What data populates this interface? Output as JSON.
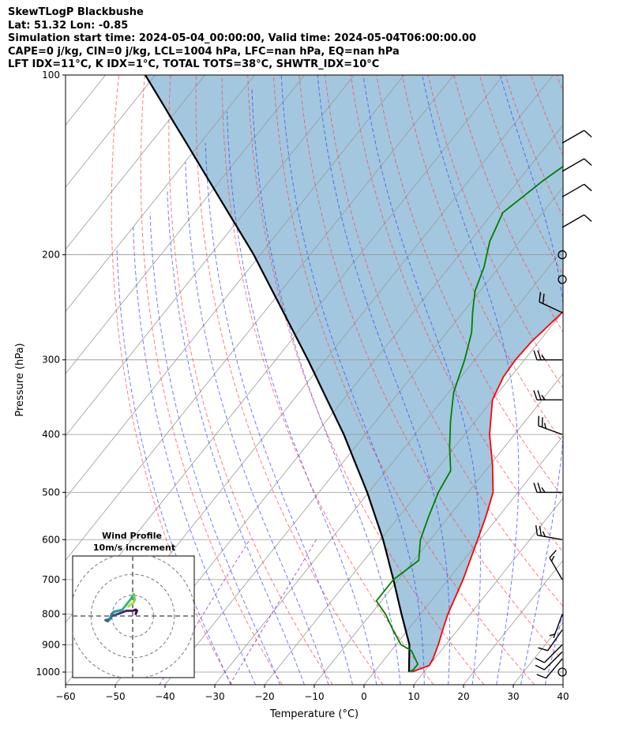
{
  "header": {
    "line1": "SkewTLogP Blackbushe",
    "line2": "Lat: 51.32   Lon: -0.85",
    "line3": "Simulation start time: 2024-05-04_00:00:00, Valid time: 2024-05-04T06:00:00.00",
    "line4": "CAPE=0 j/kg, CIN=0 j/kg, LCL=1004 hPa, LFC=nan hPa, EQ=nan hPa",
    "line5": "LFT IDX=11$^\\circ$C, K IDX=1$^\\circ$C, TOTAL TOTS=38$^\\circ$C, SHWTR_IDX=10$^\\circ$C"
  },
  "chart_data": {
    "type": "line",
    "title": "SkewTLogP Blackbushe",
    "xlabel": "Temperature ($^\\circ$C)",
    "ylabel": "Pressure (hPa)",
    "xlim": [
      -60,
      40
    ],
    "ylim": [
      1050,
      100
    ],
    "log_y": true,
    "skew": true,
    "grid": true,
    "x_ticks": [
      -60,
      -50,
      -40,
      -30,
      -20,
      -10,
      0,
      10,
      20,
      30,
      40
    ],
    "x_tick_labels": [
      "−60",
      "−50",
      "−40",
      "−30",
      "−20",
      "−10",
      "0",
      "10",
      "20",
      "30",
      "40"
    ],
    "y_ticks": [
      1000,
      900,
      800,
      700,
      600,
      500,
      400,
      300,
      200,
      100
    ],
    "y_tick_labels": [
      "1000",
      "900",
      "800",
      "700",
      "600",
      "500",
      "400",
      "300",
      "200",
      "100"
    ],
    "colors": {
      "temperature": "#ff0000",
      "dewpoint": "#008000",
      "parcel": "#000000",
      "fill": "#a3c7df",
      "dry_adiabat": "#ff4444",
      "moist_adiabat": "#3344ff",
      "mixing_ratio": "#9933cc",
      "isotherm": "#999999"
    },
    "series": [
      {
        "key": "temperature",
        "values": [
          [
            1000,
            7.5
          ],
          [
            975,
            10
          ],
          [
            950,
            9.7
          ],
          [
            900,
            8.5
          ],
          [
            850,
            7
          ],
          [
            800,
            5.5
          ],
          [
            700,
            3
          ],
          [
            600,
            -0.5
          ],
          [
            550,
            -2.5
          ],
          [
            500,
            -5
          ],
          [
            450,
            -9.5
          ],
          [
            400,
            -15
          ],
          [
            350,
            -20
          ],
          [
            320,
            -21.5
          ],
          [
            300,
            -21.8
          ],
          [
            280,
            -21.5
          ],
          [
            250,
            -20
          ],
          [
            230,
            -18
          ],
          [
            210,
            -17
          ],
          [
            190,
            -14.5
          ],
          [
            160,
            -11
          ],
          [
            140,
            -9
          ],
          [
            120,
            -6
          ],
          [
            110,
            -4
          ],
          [
            100,
            -1.5
          ]
        ]
      },
      {
        "key": "dewpoint",
        "values": [
          [
            1000,
            7
          ],
          [
            990,
            7.5
          ],
          [
            970,
            7.5
          ],
          [
            920,
            4
          ],
          [
            900,
            1
          ],
          [
            850,
            -3
          ],
          [
            800,
            -7
          ],
          [
            760,
            -11
          ],
          [
            700,
            -11
          ],
          [
            650,
            -9
          ],
          [
            600,
            -12
          ],
          [
            550,
            -14
          ],
          [
            500,
            -16
          ],
          [
            460,
            -17
          ],
          [
            420,
            -21
          ],
          [
            380,
            -25
          ],
          [
            340,
            -29
          ],
          [
            300,
            -32
          ],
          [
            270,
            -35
          ],
          [
            250,
            -38
          ],
          [
            230,
            -41
          ],
          [
            210,
            -43
          ],
          [
            190,
            -46
          ],
          [
            170,
            -48
          ],
          [
            150,
            -45
          ],
          [
            120,
            -38
          ],
          [
            100,
            -31
          ]
        ]
      },
      {
        "key": "parcel",
        "values": [
          [
            1000,
            7
          ],
          [
            900,
            2.7
          ],
          [
            800,
            -3.8
          ],
          [
            700,
            -11
          ],
          [
            600,
            -19.5
          ],
          [
            500,
            -30.3
          ],
          [
            400,
            -44.3
          ],
          [
            300,
            -63.5
          ],
          [
            200,
            -91.3
          ],
          [
            100,
            -142
          ]
        ]
      }
    ],
    "winds": [
      {
        "p": 1000,
        "calm": true
      },
      {
        "p": 950,
        "speed_kt": 10,
        "dir_deg": 220
      },
      {
        "p": 925,
        "speed_kt": 10,
        "dir_deg": 225
      },
      {
        "p": 900,
        "speed_kt": 10,
        "dir_deg": 225
      },
      {
        "p": 850,
        "speed_kt": 10,
        "dir_deg": 215
      },
      {
        "p": 800,
        "speed_kt": 5,
        "dir_deg": 200
      },
      {
        "p": 700,
        "speed_kt": 15,
        "dir_deg": 330
      },
      {
        "p": 600,
        "speed_kt": 25,
        "dir_deg": 280
      },
      {
        "p": 500,
        "speed_kt": 25,
        "dir_deg": 270
      },
      {
        "p": 400,
        "speed_kt": 25,
        "dir_deg": 290
      },
      {
        "p": 350,
        "speed_kt": 25,
        "dir_deg": 270
      },
      {
        "p": 300,
        "speed_kt": 25,
        "dir_deg": 270
      },
      {
        "p": 250,
        "speed_kt": 20,
        "dir_deg": 295
      },
      {
        "p": 220,
        "calm": true
      },
      {
        "p": 200,
        "calm": true
      },
      {
        "p": 180,
        "speed_kt": 10,
        "dir_deg": 60
      },
      {
        "p": 160,
        "speed_kt": 10,
        "dir_deg": 60
      },
      {
        "p": 145,
        "speed_kt": 10,
        "dir_deg": 60
      },
      {
        "p": 130,
        "speed_kt": 10,
        "dir_deg": 60
      }
    ],
    "hodograph": {
      "title_line1": "Wind Profile",
      "title_line2": "10m/s increment",
      "ring_step_ms": 10,
      "points": [
        [
          1.5,
          1
        ],
        [
          2,
          2.5
        ],
        [
          1.5,
          3
        ],
        [
          0,
          2.5
        ],
        [
          -3,
          2.5
        ],
        [
          -7,
          1
        ],
        [
          -10,
          0
        ],
        [
          -10.5,
          -1
        ],
        [
          -12,
          -2.5
        ],
        [
          -13,
          -2
        ],
        [
          -11,
          -1.5
        ],
        [
          -10,
          1
        ],
        [
          -9,
          2
        ],
        [
          -7,
          2.5
        ],
        [
          -5,
          3
        ],
        [
          -3,
          5.5
        ],
        [
          -1,
          8
        ],
        [
          0.5,
          10.5
        ],
        [
          1,
          8
        ],
        [
          0.5,
          6.5
        ],
        [
          -1,
          5.5
        ],
        [
          -2,
          4.5
        ]
      ]
    }
  }
}
